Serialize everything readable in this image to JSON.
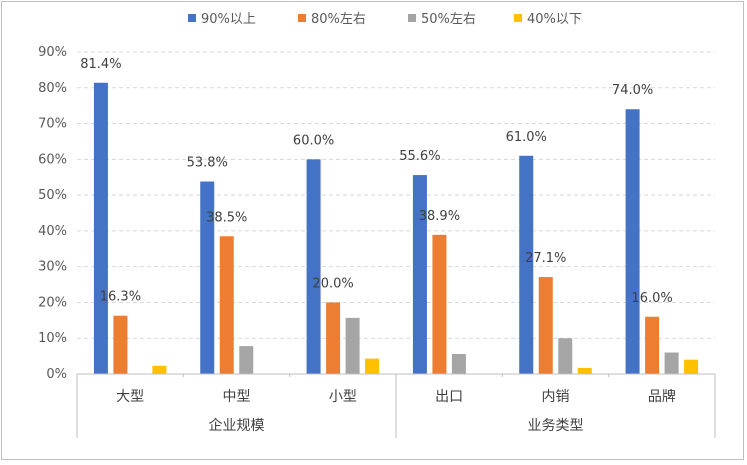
{
  "chart_data": {
    "type": "bar",
    "groups": [
      {
        "label": "企业规模",
        "categories": [
          "大型",
          "中型",
          "小型"
        ]
      },
      {
        "label": "业务类型",
        "categories": [
          "出口",
          "内销",
          "品牌"
        ]
      }
    ],
    "categories": [
      "大型",
      "中型",
      "小型",
      "出口",
      "内销",
      "品牌"
    ],
    "series": [
      {
        "name": "90%以上",
        "color": "#4472C4",
        "values": [
          81.4,
          53.8,
          60.0,
          55.6,
          61.0,
          74.0
        ],
        "labels": [
          "81.4%",
          "53.8%",
          "60.0%",
          "55.6%",
          "61.0%",
          "74.0%"
        ]
      },
      {
        "name": "80%左右",
        "color": "#ED7D31",
        "values": [
          16.3,
          38.5,
          20.0,
          38.9,
          27.1,
          16.0
        ],
        "labels": [
          "16.3%",
          "38.5%",
          "20.0%",
          "38.9%",
          "27.1%",
          "16.0%"
        ]
      },
      {
        "name": "50%左右",
        "color": "#A5A5A5",
        "values": [
          0,
          7.8,
          15.7,
          5.6,
          10.0,
          6.0
        ],
        "labels": [
          "",
          "",
          "",
          "",
          "",
          ""
        ]
      },
      {
        "name": "40%以下",
        "color": "#FFC000",
        "values": [
          2.3,
          0,
          4.3,
          0,
          1.7,
          4.0
        ],
        "labels": [
          "",
          "",
          "",
          "",
          "",
          ""
        ]
      }
    ],
    "y_ticks": [
      "0%",
      "10%",
      "20%",
      "30%",
      "40%",
      "50%",
      "60%",
      "70%",
      "80%",
      "90%"
    ],
    "ylim": [
      0,
      90
    ],
    "grid": true,
    "legend": "top"
  }
}
